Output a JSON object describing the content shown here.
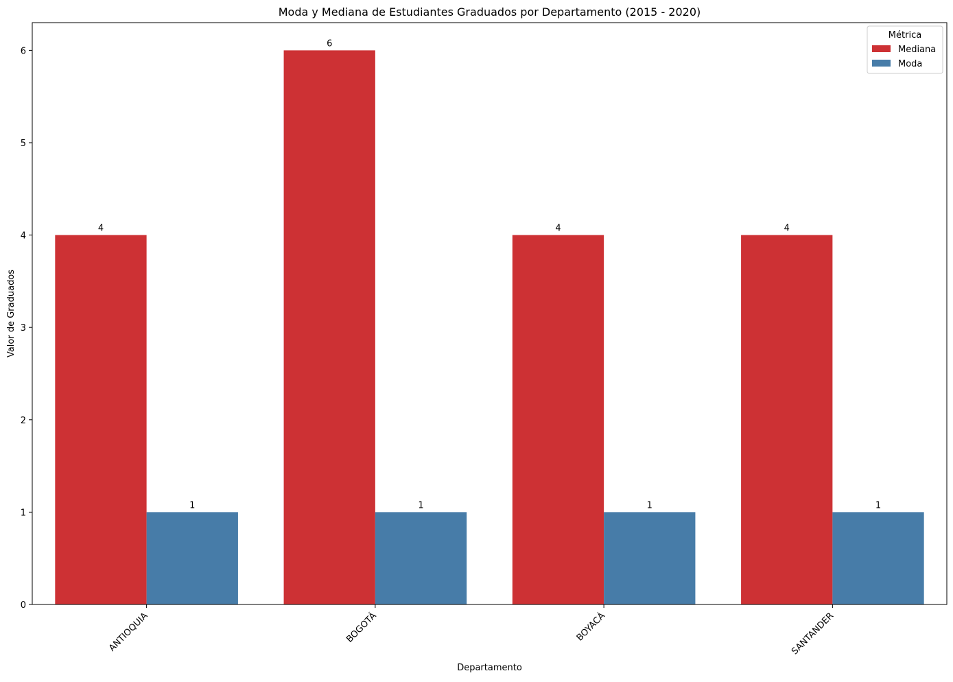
{
  "chart_data": {
    "type": "bar",
    "title": "Moda y Mediana de Estudiantes Graduados por Departamento (2015 - 2020)",
    "xlabel": "Departamento",
    "ylabel": "Valor de Graduados",
    "categories": [
      "ANTIOQUIA",
      "BOGOTÁ",
      "BOYACÁ",
      "SANTANDER"
    ],
    "series": [
      {
        "name": "Mediana",
        "values": [
          4,
          6,
          4,
          4
        ],
        "color": "#cd3134"
      },
      {
        "name": "Moda",
        "values": [
          1,
          1,
          1,
          1
        ],
        "color": "#477ca8"
      }
    ],
    "ylim": [
      0,
      6.3
    ],
    "yticks": [
      0,
      1,
      2,
      3,
      4,
      5,
      6
    ],
    "grid": false,
    "legend": {
      "title": "Métrica",
      "position": "top-right"
    },
    "data_labels": true
  }
}
